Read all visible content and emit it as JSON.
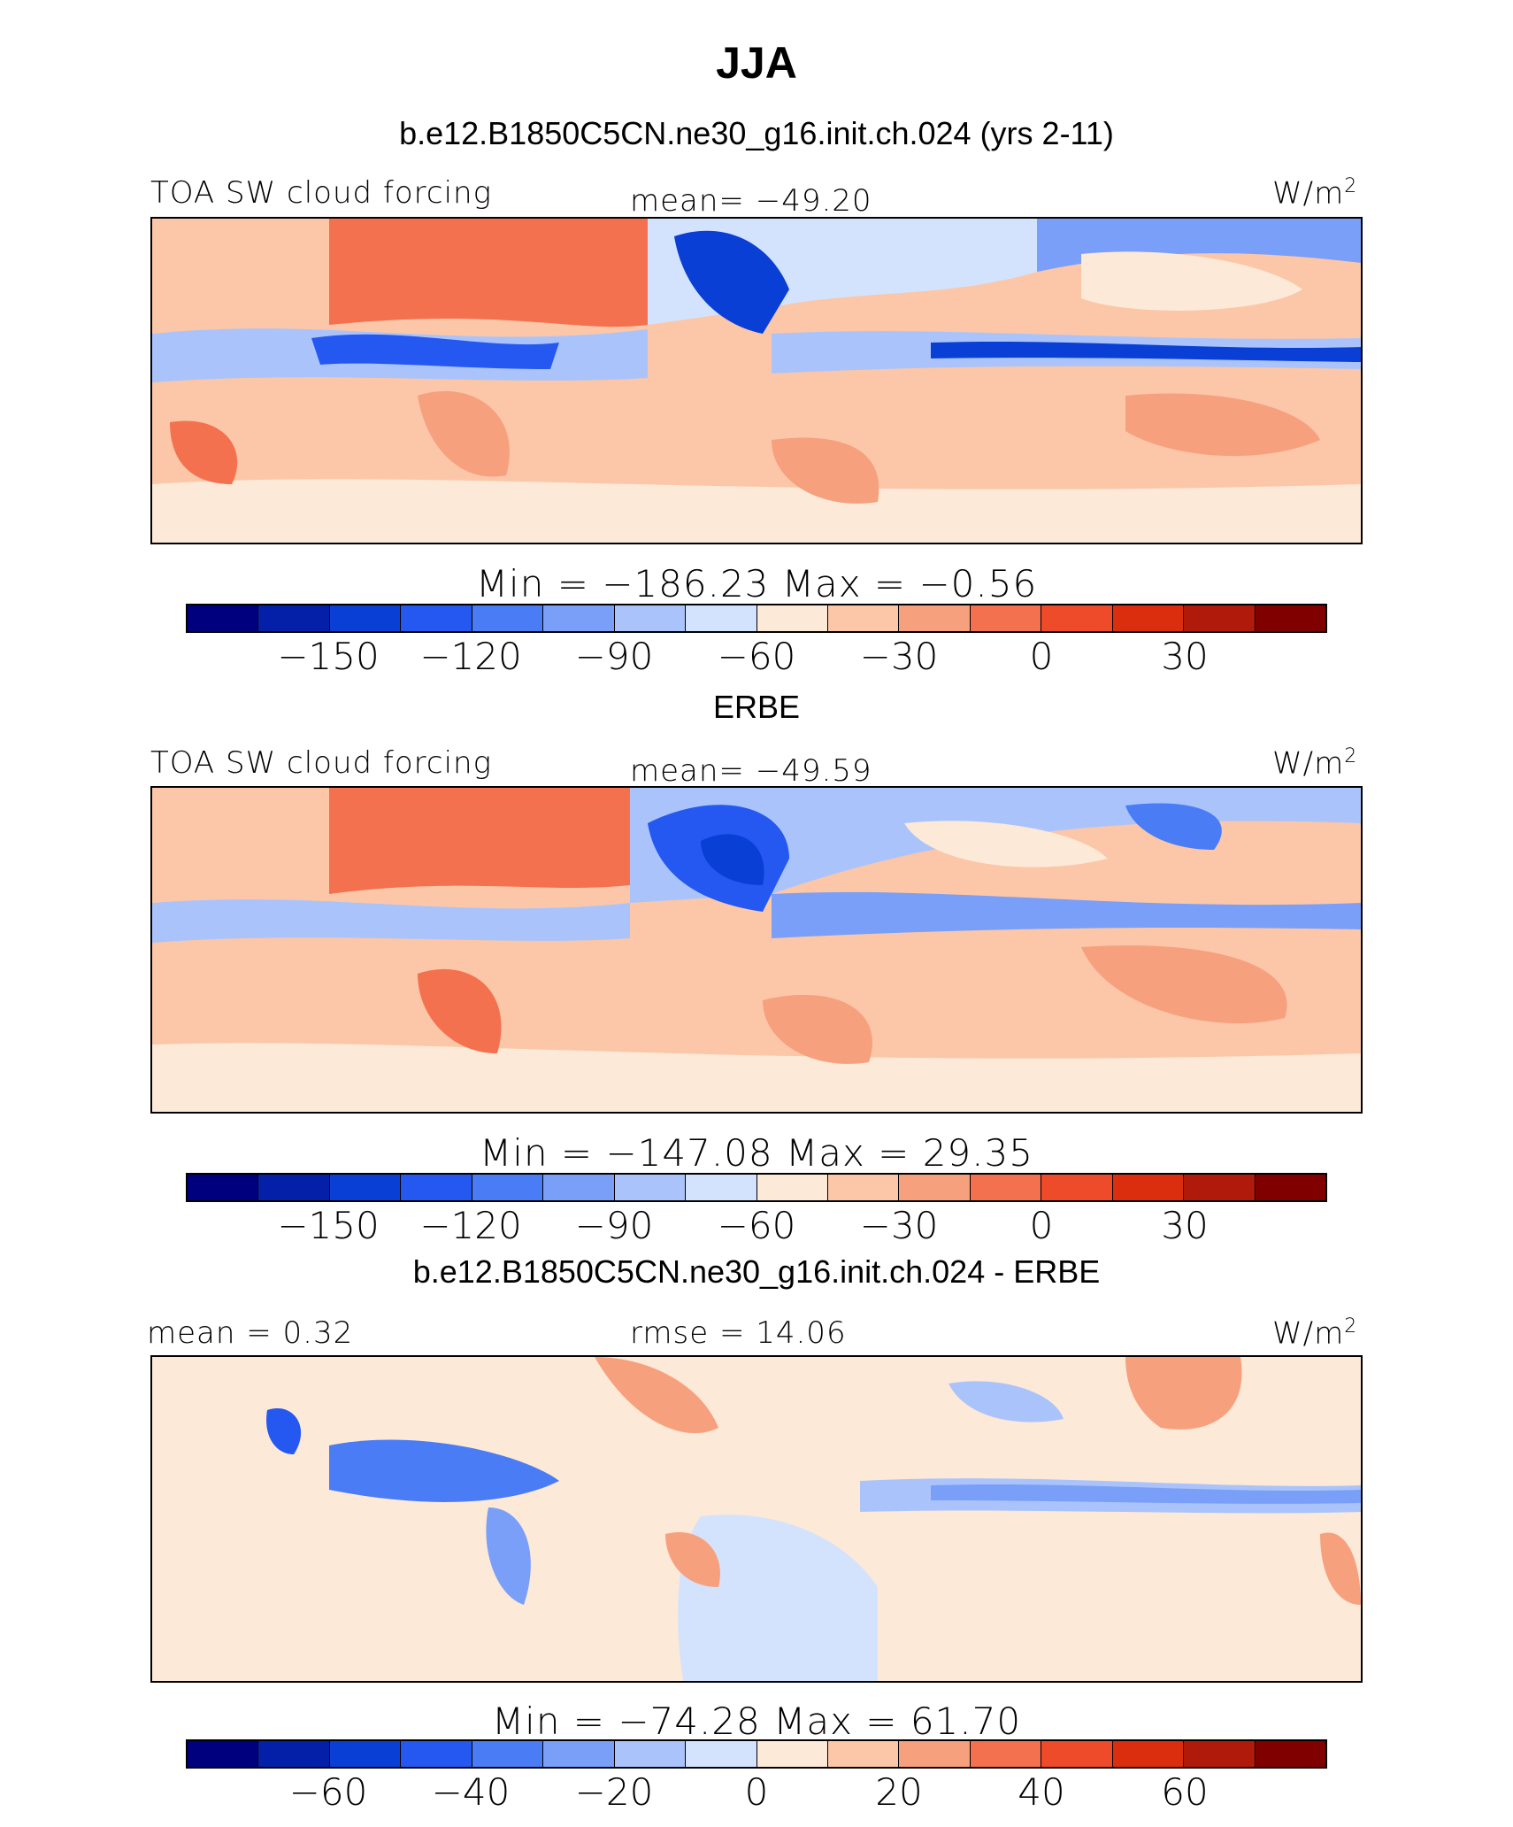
{
  "figure": {
    "title": "JJA"
  },
  "colorbar_colors": [
    "#00007f",
    "#0520a8",
    "#0a3fd6",
    "#2458f0",
    "#4a7cf5",
    "#7a9ff8",
    "#aac4fb",
    "#d4e3fd",
    "#fde9d8",
    "#fbc7a8",
    "#f7a07e",
    "#f3714f",
    "#ee4b2b",
    "#da2e0e",
    "#b01a0a",
    "#800000"
  ],
  "panels": [
    {
      "subtitle": "b.e12.B1850C5CN.ne30_g16.init.ch.024 (yrs 2-11)",
      "left_label": "TOA SW cloud forcing",
      "center_label": "mean= −49.20",
      "units": "W/m",
      "units_sup": "2",
      "stats": "Min = −186.23  Max =   −0.56",
      "ticks": [
        "−150",
        "−120",
        "−90",
        "−60",
        "−30",
        "0",
        "30"
      ]
    },
    {
      "subtitle": "ERBE",
      "left_label": "TOA SW cloud forcing",
      "center_label": "mean= −49.59",
      "units": "W/m",
      "units_sup": "2",
      "stats": "Min = −147.08  Max =   29.35",
      "ticks": [
        "−150",
        "−120",
        "−90",
        "−60",
        "−30",
        "0",
        "30"
      ]
    },
    {
      "subtitle": "b.e12.B1850C5CN.ne30_g16.init.ch.024 - ERBE",
      "left_label": "mean =   0.32",
      "center_label": "rmse =   14.06",
      "units": "W/m",
      "units_sup": "2",
      "stats": "Min = −74.28  Max =   61.70",
      "ticks": [
        "−60",
        "−40",
        "−20",
        "0",
        "20",
        "40",
        "60"
      ]
    }
  ],
  "chart_data": [
    {
      "type": "heatmap",
      "title": "TOA SW cloud forcing",
      "units": "W/m2",
      "mean": -49.2,
      "min": -186.23,
      "max": -0.56,
      "colorbar_levels": [
        -165,
        -150,
        -135,
        -120,
        -105,
        -90,
        -75,
        -60,
        -45,
        -30,
        -15,
        0,
        15,
        30,
        45
      ],
      "colorbar_ticks": [
        -150,
        -120,
        -90,
        -60,
        -30,
        0,
        30
      ]
    },
    {
      "type": "heatmap",
      "title": "TOA SW cloud forcing",
      "units": "W/m2",
      "mean": -49.59,
      "min": -147.08,
      "max": 29.35,
      "colorbar_levels": [
        -165,
        -150,
        -135,
        -120,
        -105,
        -90,
        -75,
        -60,
        -45,
        -30,
        -15,
        0,
        15,
        30,
        45
      ],
      "colorbar_ticks": [
        -150,
        -120,
        -90,
        -60,
        -30,
        0,
        30
      ]
    },
    {
      "type": "heatmap",
      "units": "W/m2",
      "mean": 0.32,
      "rmse": 14.06,
      "min": -74.28,
      "max": 61.7,
      "colorbar_levels": [
        -70,
        -60,
        -50,
        -40,
        -30,
        -20,
        -10,
        0,
        10,
        20,
        30,
        40,
        50,
        60,
        70
      ],
      "colorbar_ticks": [
        -60,
        -40,
        -20,
        0,
        20,
        40,
        60
      ]
    }
  ]
}
